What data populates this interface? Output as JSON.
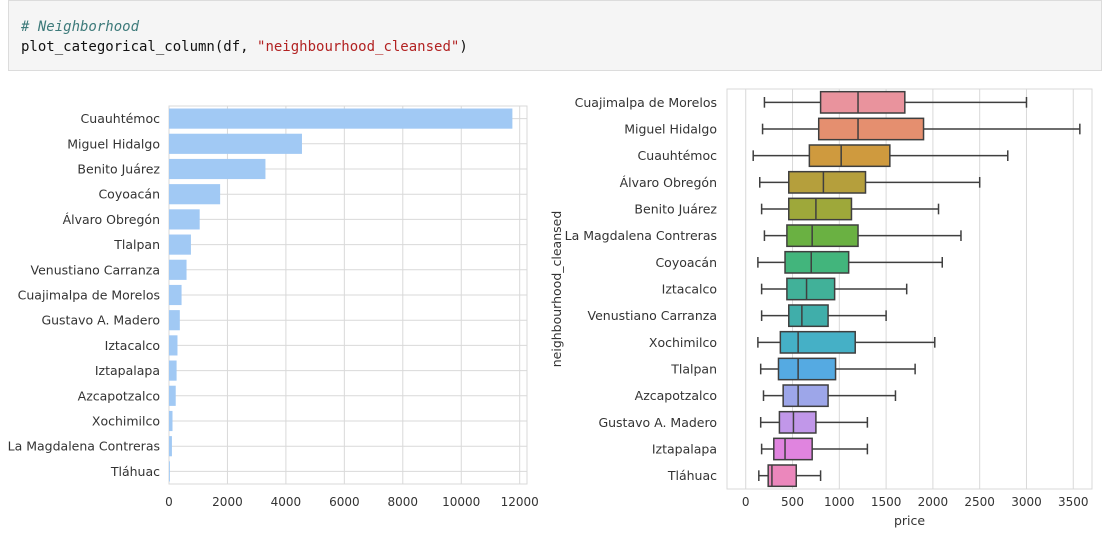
{
  "code": {
    "comment": "# Neighborhood",
    "call_prefix": "plot_categorical_column(df, ",
    "call_string": "\"neighbourhood_cleansed\"",
    "call_suffix": ")"
  },
  "colors": {
    "bar": "#a1c9f4",
    "grid": "#d9d9d9",
    "box_edge": "#3f3f3f",
    "box_palette": [
      "#e9939d",
      "#e58f6f",
      "#cf9a3e",
      "#b59f3c",
      "#9ea83a",
      "#6ab142",
      "#42b57c",
      "#41b199",
      "#40aeaa",
      "#45b0c6",
      "#55aae2",
      "#9da6e9",
      "#c197e9",
      "#e084df",
      "#eb87bc"
    ]
  },
  "chart_data": [
    {
      "type": "bar",
      "orientation": "horizontal",
      "categories": [
        "Cuauhtémoc",
        "Miguel Hidalgo",
        "Benito Juárez",
        "Coyoacán",
        "Álvaro Obregón",
        "Tlalpan",
        "Venustiano Carranza",
        "Cuajimalpa de Morelos",
        "Gustavo A. Madero",
        "Iztacalco",
        "Iztapalapa",
        "Azcapotzalco",
        "Xochimilco",
        "La Magdalena Contreras",
        "Tláhuac"
      ],
      "values": [
        11750,
        4550,
        3300,
        1750,
        1050,
        750,
        600,
        430,
        370,
        290,
        260,
        230,
        120,
        100,
        30
      ],
      "xlim": [
        0,
        12250
      ],
      "xticks": [
        0,
        2000,
        4000,
        6000,
        8000,
        10000,
        12000
      ],
      "xlabel": "",
      "ylabel": "",
      "grid": true
    },
    {
      "type": "box",
      "orientation": "horizontal",
      "categories": [
        "Cuajimalpa de Morelos",
        "Miguel Hidalgo",
        "Cuauhtémoc",
        "Álvaro Obregón",
        "Benito Juárez",
        "La Magdalena Contreras",
        "Coyoacán",
        "Iztacalco",
        "Venustiano Carranza",
        "Xochimilco",
        "Tlalpan",
        "Azcapotzalco",
        "Gustavo A. Madero",
        "Iztapalapa",
        "Tláhuac"
      ],
      "boxes": [
        {
          "whisker_low": 200,
          "q1": 800,
          "median": 1200,
          "q3": 1700,
          "whisker_high": 3000
        },
        {
          "whisker_low": 180,
          "q1": 780,
          "median": 1200,
          "q3": 1900,
          "whisker_high": 3570
        },
        {
          "whisker_low": 80,
          "q1": 680,
          "median": 1020,
          "q3": 1540,
          "whisker_high": 2800
        },
        {
          "whisker_low": 150,
          "q1": 460,
          "median": 830,
          "q3": 1280,
          "whisker_high": 2500
        },
        {
          "whisker_low": 170,
          "q1": 460,
          "median": 750,
          "q3": 1130,
          "whisker_high": 2060
        },
        {
          "whisker_low": 200,
          "q1": 440,
          "median": 710,
          "q3": 1200,
          "whisker_high": 2300
        },
        {
          "whisker_low": 130,
          "q1": 420,
          "median": 700,
          "q3": 1100,
          "whisker_high": 2100
        },
        {
          "whisker_low": 170,
          "q1": 440,
          "median": 650,
          "q3": 950,
          "whisker_high": 1720
        },
        {
          "whisker_low": 170,
          "q1": 460,
          "median": 600,
          "q3": 880,
          "whisker_high": 1500
        },
        {
          "whisker_low": 130,
          "q1": 370,
          "median": 560,
          "q3": 1170,
          "whisker_high": 2020
        },
        {
          "whisker_low": 160,
          "q1": 350,
          "median": 560,
          "q3": 960,
          "whisker_high": 1810
        },
        {
          "whisker_low": 190,
          "q1": 400,
          "median": 560,
          "q3": 880,
          "whisker_high": 1600
        },
        {
          "whisker_low": 160,
          "q1": 360,
          "median": 510,
          "q3": 750,
          "whisker_high": 1300
        },
        {
          "whisker_low": 170,
          "q1": 300,
          "median": 420,
          "q3": 710,
          "whisker_high": 1300
        },
        {
          "whisker_low": 140,
          "q1": 240,
          "median": 280,
          "q3": 540,
          "whisker_high": 800
        }
      ],
      "xlim": [
        -200,
        3700
      ],
      "xticks": [
        0,
        500,
        1000,
        1500,
        2000,
        2500,
        3000,
        3500
      ],
      "xlabel": "price",
      "ylabel": "neighbourhood_cleansed",
      "grid": true
    }
  ]
}
